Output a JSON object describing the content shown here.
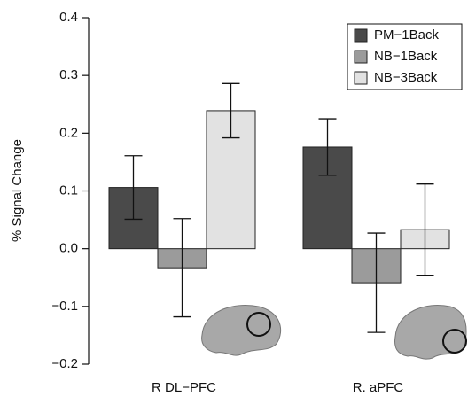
{
  "chart_data": {
    "type": "bar",
    "categories": [
      "R DL−PFC",
      "R. aPFC"
    ],
    "y_label": "% Signal Change",
    "series": [
      {
        "name": "PM−1Back",
        "color": "#4a4a4a",
        "values": [
          0.106,
          0.176
        ],
        "errors": [
          0.055,
          0.049
        ]
      },
      {
        "name": "NB−1Back",
        "color": "#9b9b9b",
        "values": [
          -0.033,
          -0.059
        ],
        "errors": [
          0.085,
          0.086
        ]
      },
      {
        "name": "NB−3Back",
        "color": "#e2e2e2",
        "values": [
          0.239,
          0.033
        ],
        "errors": [
          0.047,
          0.079
        ]
      }
    ],
    "ylim": [
      -0.2,
      0.4
    ],
    "yticks": [
      {
        "value": -0.2,
        "label": "−0.2"
      },
      {
        "value": -0.1,
        "label": "−0.1"
      },
      {
        "value": 0,
        "label": "0.0"
      },
      0.1,
      0.2,
      0.3,
      0.4
    ],
    "legend": "upper right"
  }
}
